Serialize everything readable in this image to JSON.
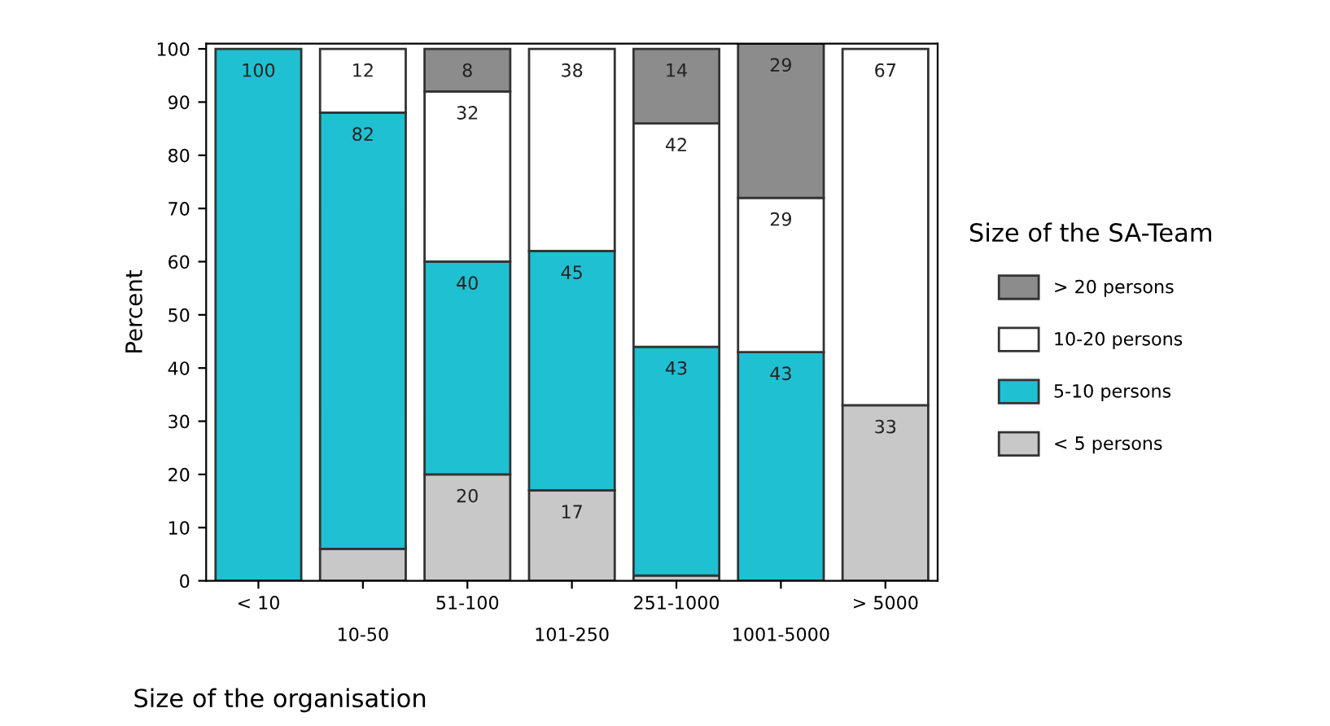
{
  "chart_data": {
    "type": "bar",
    "stacked": true,
    "xlabel": "Size of the organisation",
    "ylabel": "Percent",
    "legend_title": "Size of the SA-Team",
    "legend": "right",
    "categories": [
      "< 10",
      "10-50",
      "51-100",
      "101-250",
      "251-1000",
      "1001-5000",
      "> 5000"
    ],
    "ylim": [
      0,
      101
    ],
    "yticks": [
      0,
      10,
      20,
      30,
      40,
      50,
      60,
      70,
      80,
      90,
      100
    ],
    "grid": false,
    "series": [
      {
        "name": "< 5 persons",
        "color": "#c8c8c8",
        "values": [
          0,
          6,
          20,
          17,
          1,
          0,
          33
        ],
        "value_labels": [
          null,
          null,
          "20",
          "17",
          null,
          null,
          "33"
        ]
      },
      {
        "name": "5-10 persons",
        "color": "#1fc0d2",
        "values": [
          100,
          82,
          40,
          45,
          43,
          43,
          0
        ],
        "value_labels": [
          "100",
          "82",
          "40",
          "45",
          "43",
          "43",
          null
        ]
      },
      {
        "name": "10-20 persons",
        "color": "#ffffff",
        "values": [
          0,
          12,
          32,
          38,
          42,
          29,
          67
        ],
        "value_labels": [
          null,
          "12",
          "32",
          "38",
          "42",
          "29",
          "67"
        ]
      },
      {
        "name": "> 20 persons",
        "color": "#8c8c8c",
        "values": [
          0,
          0,
          8,
          0,
          14,
          29,
          0
        ],
        "value_labels": [
          null,
          null,
          "8",
          null,
          "14",
          "29",
          null
        ]
      }
    ]
  }
}
